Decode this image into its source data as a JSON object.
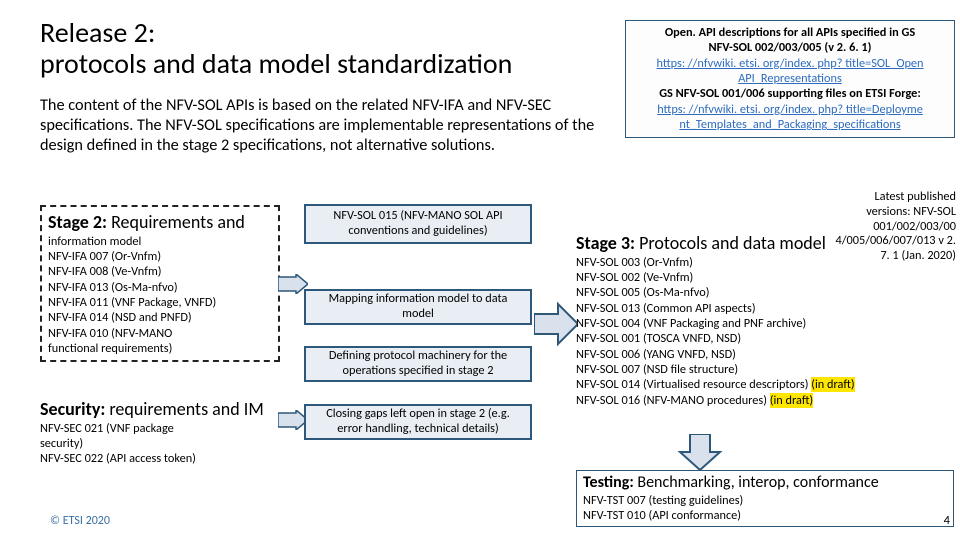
{
  "title_line1": "Release 2:",
  "title_line2": "protocols and data model standardization",
  "refbox": {
    "l1": "Open. API descriptions for all APIs specified in GS",
    "l2": "NFV-SOL 002/003/005 (v 2. 6. 1)",
    "link1": "https: //nfvwiki. etsi. org/index. php? title=SOL_Open",
    "link1b": "API_Representations",
    "l3": "GS NFV-SOL 001/006 supporting files on ETSI Forge:",
    "link2": "https: //nfvwiki. etsi. org/index. php? title=Deployme",
    "link2b": "nt_Templates_and_Packaging_specifications"
  },
  "desc": "The content of the NFV-SOL APIs is based on the related NFV-IFA and NFV-SEC specifications. The NFV-SOL specifications are implementable representations of the design defined in the stage 2 specifications, not alternative solutions.",
  "stage2": {
    "hd_bold": "Stage 2:",
    "hd_rest": " Requirements and",
    "items": [
      "information model",
      "NFV-IFA 007 (Or-Vnfm)",
      "NFV-IFA 008 (Ve-Vnfm)",
      "NFV-IFA 013 (Os-Ma-nfvo)",
      "NFV-IFA 011 (VNF Package, VNFD)",
      "NFV-IFA 014 (NSD and PNFD)",
      "NFV-IFA 010 (NFV-MANO",
      "functional requirements)"
    ]
  },
  "security": {
    "hd_bold": "Security:",
    "hd_rest": " requirements and IM",
    "items": [
      "NFV-SEC 021 (VNF package",
      "security)",
      "NFV-SEC 022 (API access token)"
    ]
  },
  "mb1": "NFV-SOL 015 (NFV-MANO SOL API conventions and guidelines)",
  "mb2": "Mapping information model to data model",
  "mb3": "Defining protocol machinery for the operations specified in stage 2",
  "mb4": "Closing gaps left open in stage 2 (e.g. error handling, technical details)",
  "stage3": {
    "hd_bold": "Stage 3:",
    "hd_rest": " Protocols and data model",
    "items": [
      {
        "t": "NFV-SOL 003 (Or-Vnfm)"
      },
      {
        "t": "NFV-SOL 002 (Ve-Vnfm)"
      },
      {
        "t": "NFV-SOL 005 (Os-Ma-nfvo)"
      },
      {
        "t": "NFV-SOL 013 (Common API aspects)"
      },
      {
        "t": "NFV-SOL 004 (VNF Packaging and PNF archive)"
      },
      {
        "t": "NFV-SOL 001 (TOSCA VNFD, NSD)"
      },
      {
        "t": "NFV-SOL 006 (YANG VNFD, NSD)"
      },
      {
        "t": "NFV-SOL 007 (NSD file structure)"
      },
      {
        "t": "NFV-SOL 014 (Virtualised resource descriptors)",
        "draft": true
      },
      {
        "t": "NFV-SOL 016 (NFV-MANO procedures)",
        "draft": true
      }
    ]
  },
  "latest": "Latest published versions: NFV-SOL 001/002/003/00 4/005/006/007/013 v 2. 7. 1 (Jan. 2020)",
  "testing": {
    "hd_bold": "Testing:",
    "hd_rest": " Benchmarking, interop, conformance",
    "items": [
      "NFV-TST 007 (testing guidelines)",
      "NFV-TST 010 (API conformance)"
    ]
  },
  "copyright": "© ETSI 2020",
  "page": "4",
  "colors": {
    "box_border": "#2e587a",
    "box_fill": "#e9eef4",
    "arrow_fill": "#d9e2ec",
    "link": "#2e6cbf",
    "hl": "#ffe600"
  }
}
